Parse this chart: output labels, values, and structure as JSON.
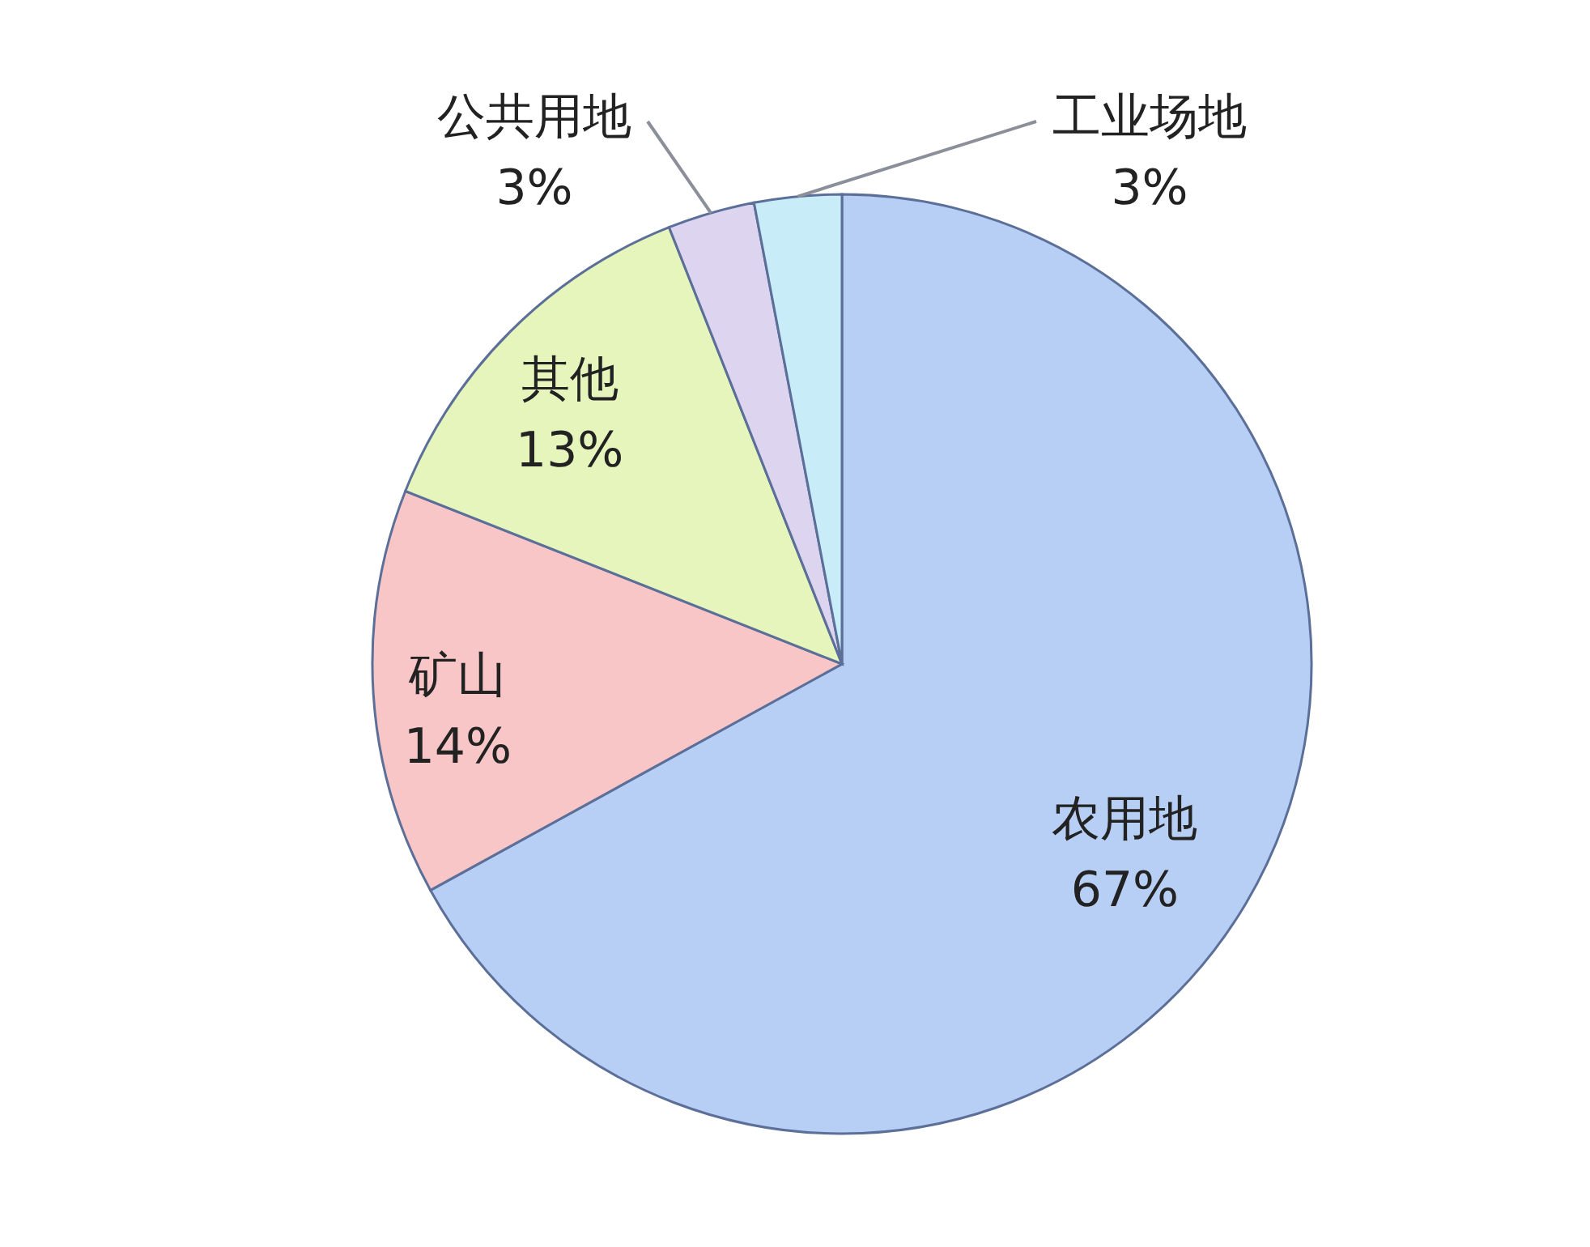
{
  "chart_data": {
    "type": "pie",
    "categories": [
      "农用地",
      "矿山",
      "其他",
      "公共用地",
      "工业场地"
    ],
    "values": [
      67,
      14,
      13,
      3,
      3
    ],
    "value_labels": [
      "67%",
      "14%",
      "13%",
      "3%",
      "3%"
    ],
    "colors": [
      "#b8cff5",
      "#f8c6c6",
      "#e6f5bc",
      "#ddd5f0",
      "#c9edf8"
    ]
  }
}
